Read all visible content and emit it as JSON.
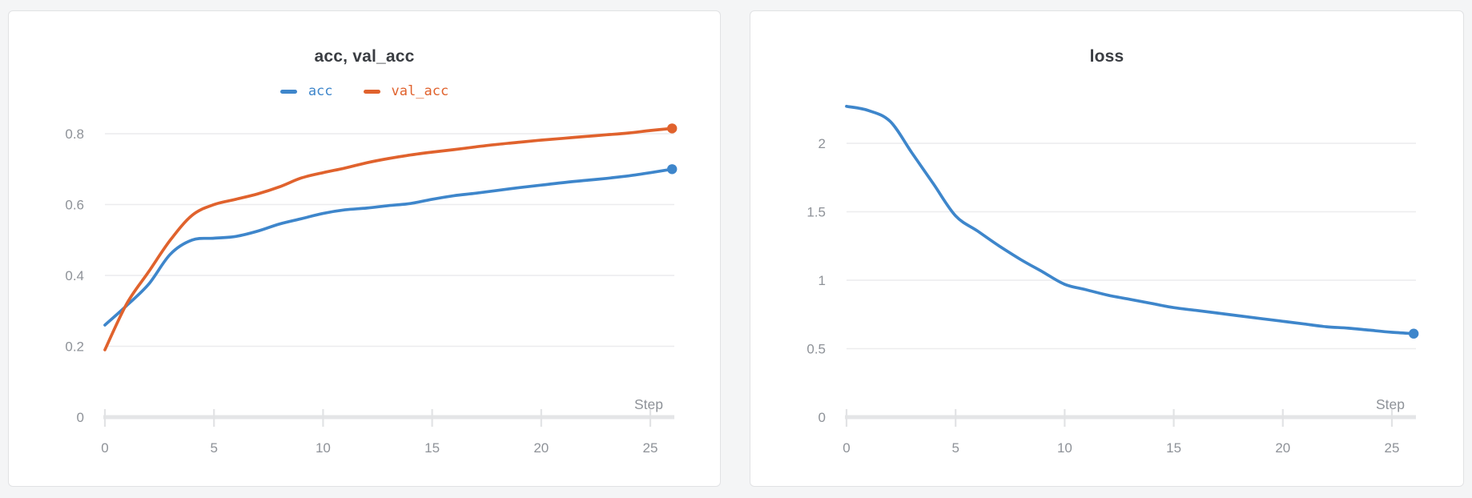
{
  "page": {
    "background_color": "#f4f5f6",
    "card_background": "#ffffff",
    "card_border_color": "#e1e2e4"
  },
  "style_colors": {
    "title_color": "#3a3d42",
    "tick_label_color": "#8e9298",
    "grid_color": "#ececee",
    "axis_color": "#e4e5e7",
    "tick_mark_color": "#e2e3e5"
  },
  "chart_data": [
    {
      "type": "line",
      "title": "acc, val_acc",
      "xlabel": "Step",
      "legend": true,
      "legend_position": "top-center",
      "grid": true,
      "xlim": [
        0,
        26
      ],
      "ylim": [
        0,
        0.88
      ],
      "xticks": [
        0,
        5,
        10,
        15,
        20,
        25
      ],
      "yticks": [
        0,
        0.2,
        0.4,
        0.6,
        0.8
      ],
      "x": [
        0,
        1,
        2,
        3,
        4,
        5,
        6,
        7,
        8,
        9,
        10,
        11,
        12,
        13,
        14,
        15,
        16,
        17,
        18,
        19,
        20,
        21,
        22,
        23,
        24,
        25,
        26
      ],
      "series": [
        {
          "name": "acc",
          "color": "#3e86cb",
          "values": [
            0.26,
            0.315,
            0.375,
            0.46,
            0.5,
            0.505,
            0.51,
            0.525,
            0.545,
            0.56,
            0.575,
            0.585,
            0.59,
            0.597,
            0.603,
            0.615,
            0.625,
            0.632,
            0.64,
            0.648,
            0.655,
            0.662,
            0.668,
            0.674,
            0.681,
            0.69,
            0.7
          ]
        },
        {
          "name": "val_acc",
          "color": "#e0622d",
          "values": [
            0.19,
            0.32,
            0.41,
            0.5,
            0.57,
            0.6,
            0.615,
            0.63,
            0.65,
            0.675,
            0.69,
            0.703,
            0.718,
            0.73,
            0.74,
            0.748,
            0.755,
            0.763,
            0.77,
            0.776,
            0.782,
            0.787,
            0.792,
            0.797,
            0.802,
            0.809,
            0.815
          ]
        }
      ]
    },
    {
      "type": "line",
      "title": "loss",
      "xlabel": "Step",
      "legend": false,
      "legend_position": "none",
      "grid": true,
      "xlim": [
        0,
        26
      ],
      "ylim": [
        0,
        2.33
      ],
      "xticks": [
        0,
        5,
        10,
        15,
        20,
        25
      ],
      "yticks": [
        0,
        0.5,
        1,
        1.5,
        2
      ],
      "x": [
        0,
        1,
        2,
        3,
        4,
        5,
        6,
        7,
        8,
        9,
        10,
        11,
        12,
        13,
        14,
        15,
        16,
        17,
        18,
        19,
        20,
        21,
        22,
        23,
        24,
        25,
        26
      ],
      "series": [
        {
          "name": "loss",
          "color": "#3e86cb",
          "values": [
            2.27,
            2.24,
            2.16,
            1.93,
            1.7,
            1.47,
            1.36,
            1.25,
            1.15,
            1.06,
            0.97,
            0.93,
            0.89,
            0.86,
            0.83,
            0.8,
            0.78,
            0.76,
            0.74,
            0.72,
            0.7,
            0.68,
            0.66,
            0.65,
            0.635,
            0.62,
            0.61
          ]
        }
      ]
    }
  ]
}
